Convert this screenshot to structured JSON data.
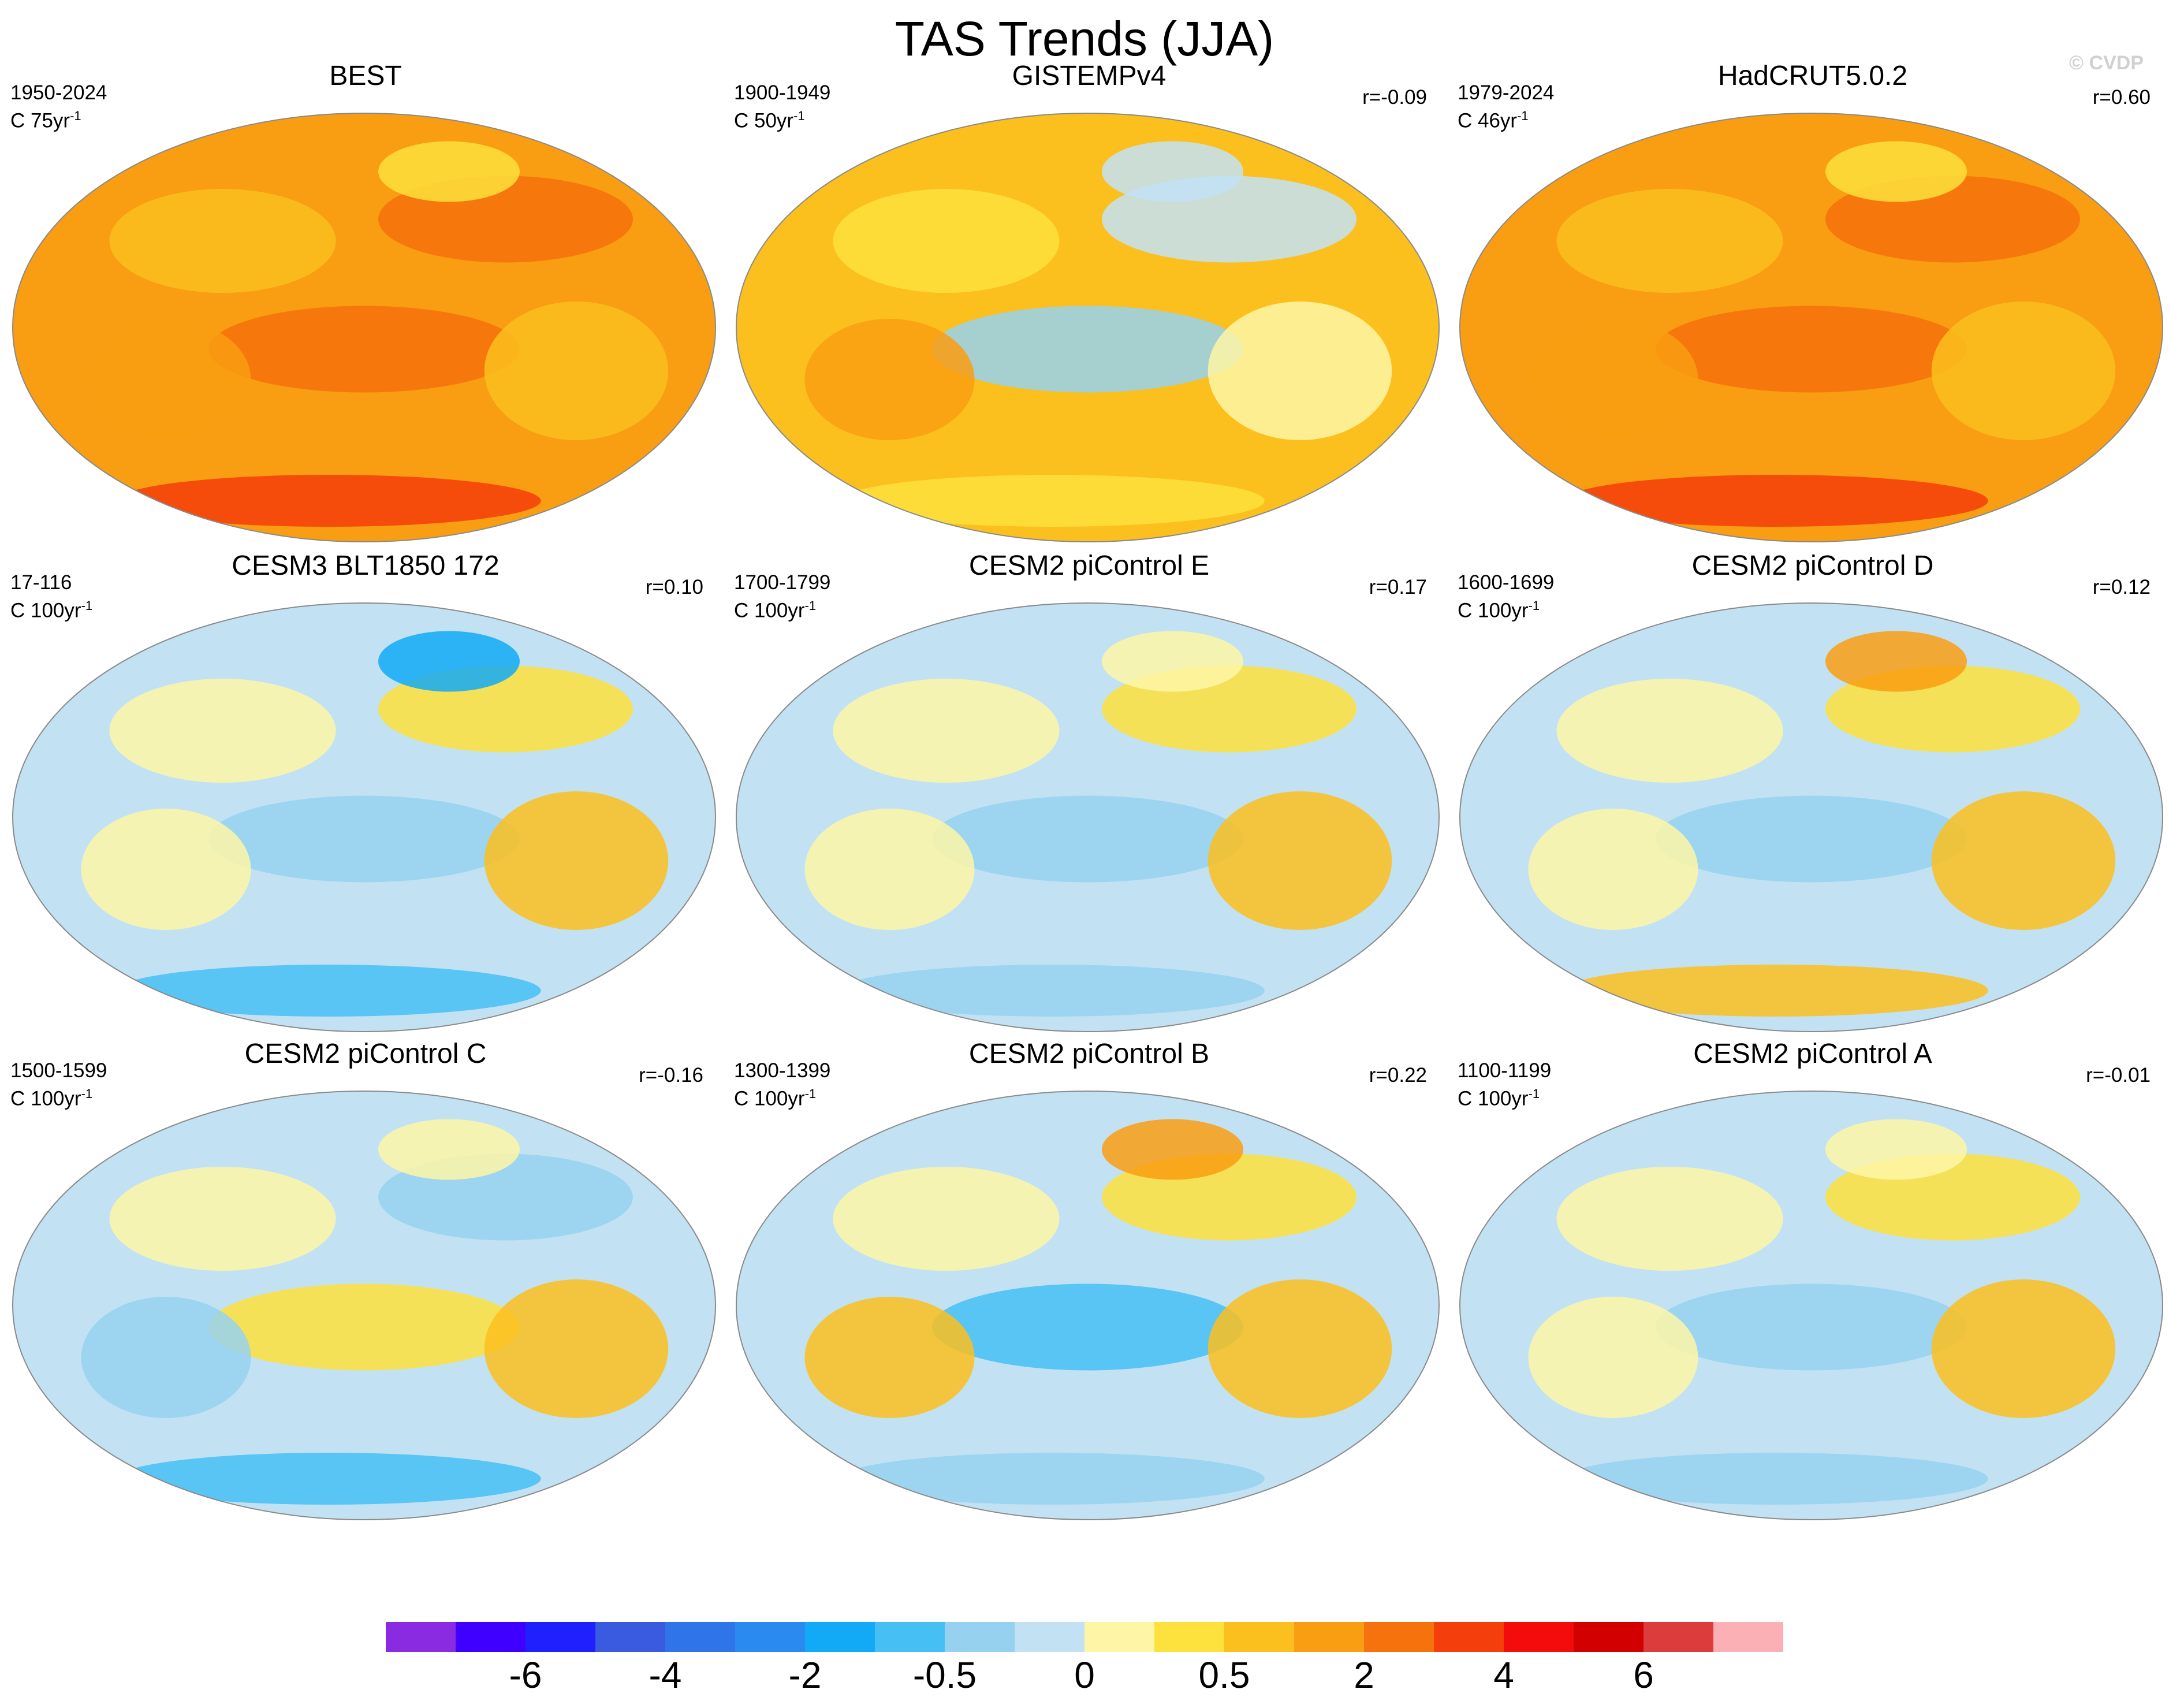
{
  "figure": {
    "title": "TAS Trends (JJA)",
    "watermark": "© CVDP"
  },
  "chart_data": {
    "type": "map-grid",
    "variable": "TAS",
    "season": "JJA",
    "projection": "robinson",
    "panels": [
      {
        "title": "BEST",
        "period": "1950-2024",
        "units_prefix": "C 75yr",
        "units_exp": "-1",
        "r": "",
        "field": "strong-warming"
      },
      {
        "title": "GISTEMPv4",
        "period": "1900-1949",
        "units_prefix": "C 50yr",
        "units_exp": "-1",
        "r": "r=-0.09",
        "field": "mixed-warm"
      },
      {
        "title": "HadCRUT5.0.2",
        "period": "1979-2024",
        "units_prefix": "C 46yr",
        "units_exp": "-1",
        "r": "r=0.60",
        "field": "strong-warming"
      },
      {
        "title": "CESM3 BLT1850 172",
        "period": "17-116",
        "units_prefix": "C 100yr",
        "units_exp": "-1",
        "r": "r=0.10",
        "field": "near-zero-cool-south"
      },
      {
        "title": "CESM2 piControl E",
        "period": "1700-1799",
        "units_prefix": "C 100yr",
        "units_exp": "-1",
        "r": "r=0.17",
        "field": "near-zero"
      },
      {
        "title": "CESM2 piControl D",
        "period": "1600-1699",
        "units_prefix": "C 100yr",
        "units_exp": "-1",
        "r": "r=0.12",
        "field": "near-zero-warm-south"
      },
      {
        "title": "CESM2 piControl C",
        "period": "1500-1599",
        "units_prefix": "C 100yr",
        "units_exp": "-1",
        "r": "r=-0.16",
        "field": "near-zero-cool"
      },
      {
        "title": "CESM2 piControl B",
        "period": "1300-1399",
        "units_prefix": "C 100yr",
        "units_exp": "-1",
        "r": "r=0.22",
        "field": "near-zero-mixed"
      },
      {
        "title": "CESM2 piControl A",
        "period": "1100-1199",
        "units_prefix": "C 100yr",
        "units_exp": "-1",
        "r": "r=-0.01",
        "field": "near-zero"
      }
    ],
    "colorbar": {
      "colors": [
        "#8a2be2",
        "#3f00ff",
        "#2020ff",
        "#3a5ae0",
        "#2f74e8",
        "#2a8af0",
        "#12aaf6",
        "#46c0f4",
        "#96d2f0",
        "#c2e2f4",
        "#fdf6a6",
        "#fde13c",
        "#fbbf1e",
        "#f99d12",
        "#f6720c",
        "#f43e0c",
        "#f40c0c",
        "#d20000",
        "#dc3c3c",
        "#fab0b4"
      ],
      "tick_labels": [
        "-6",
        "-4",
        "-2",
        "-0.5",
        "0",
        "0.5",
        "2",
        "4",
        "6"
      ],
      "tick_boundaries": [
        2,
        4,
        6,
        8,
        10,
        12,
        14,
        16,
        18
      ]
    }
  }
}
